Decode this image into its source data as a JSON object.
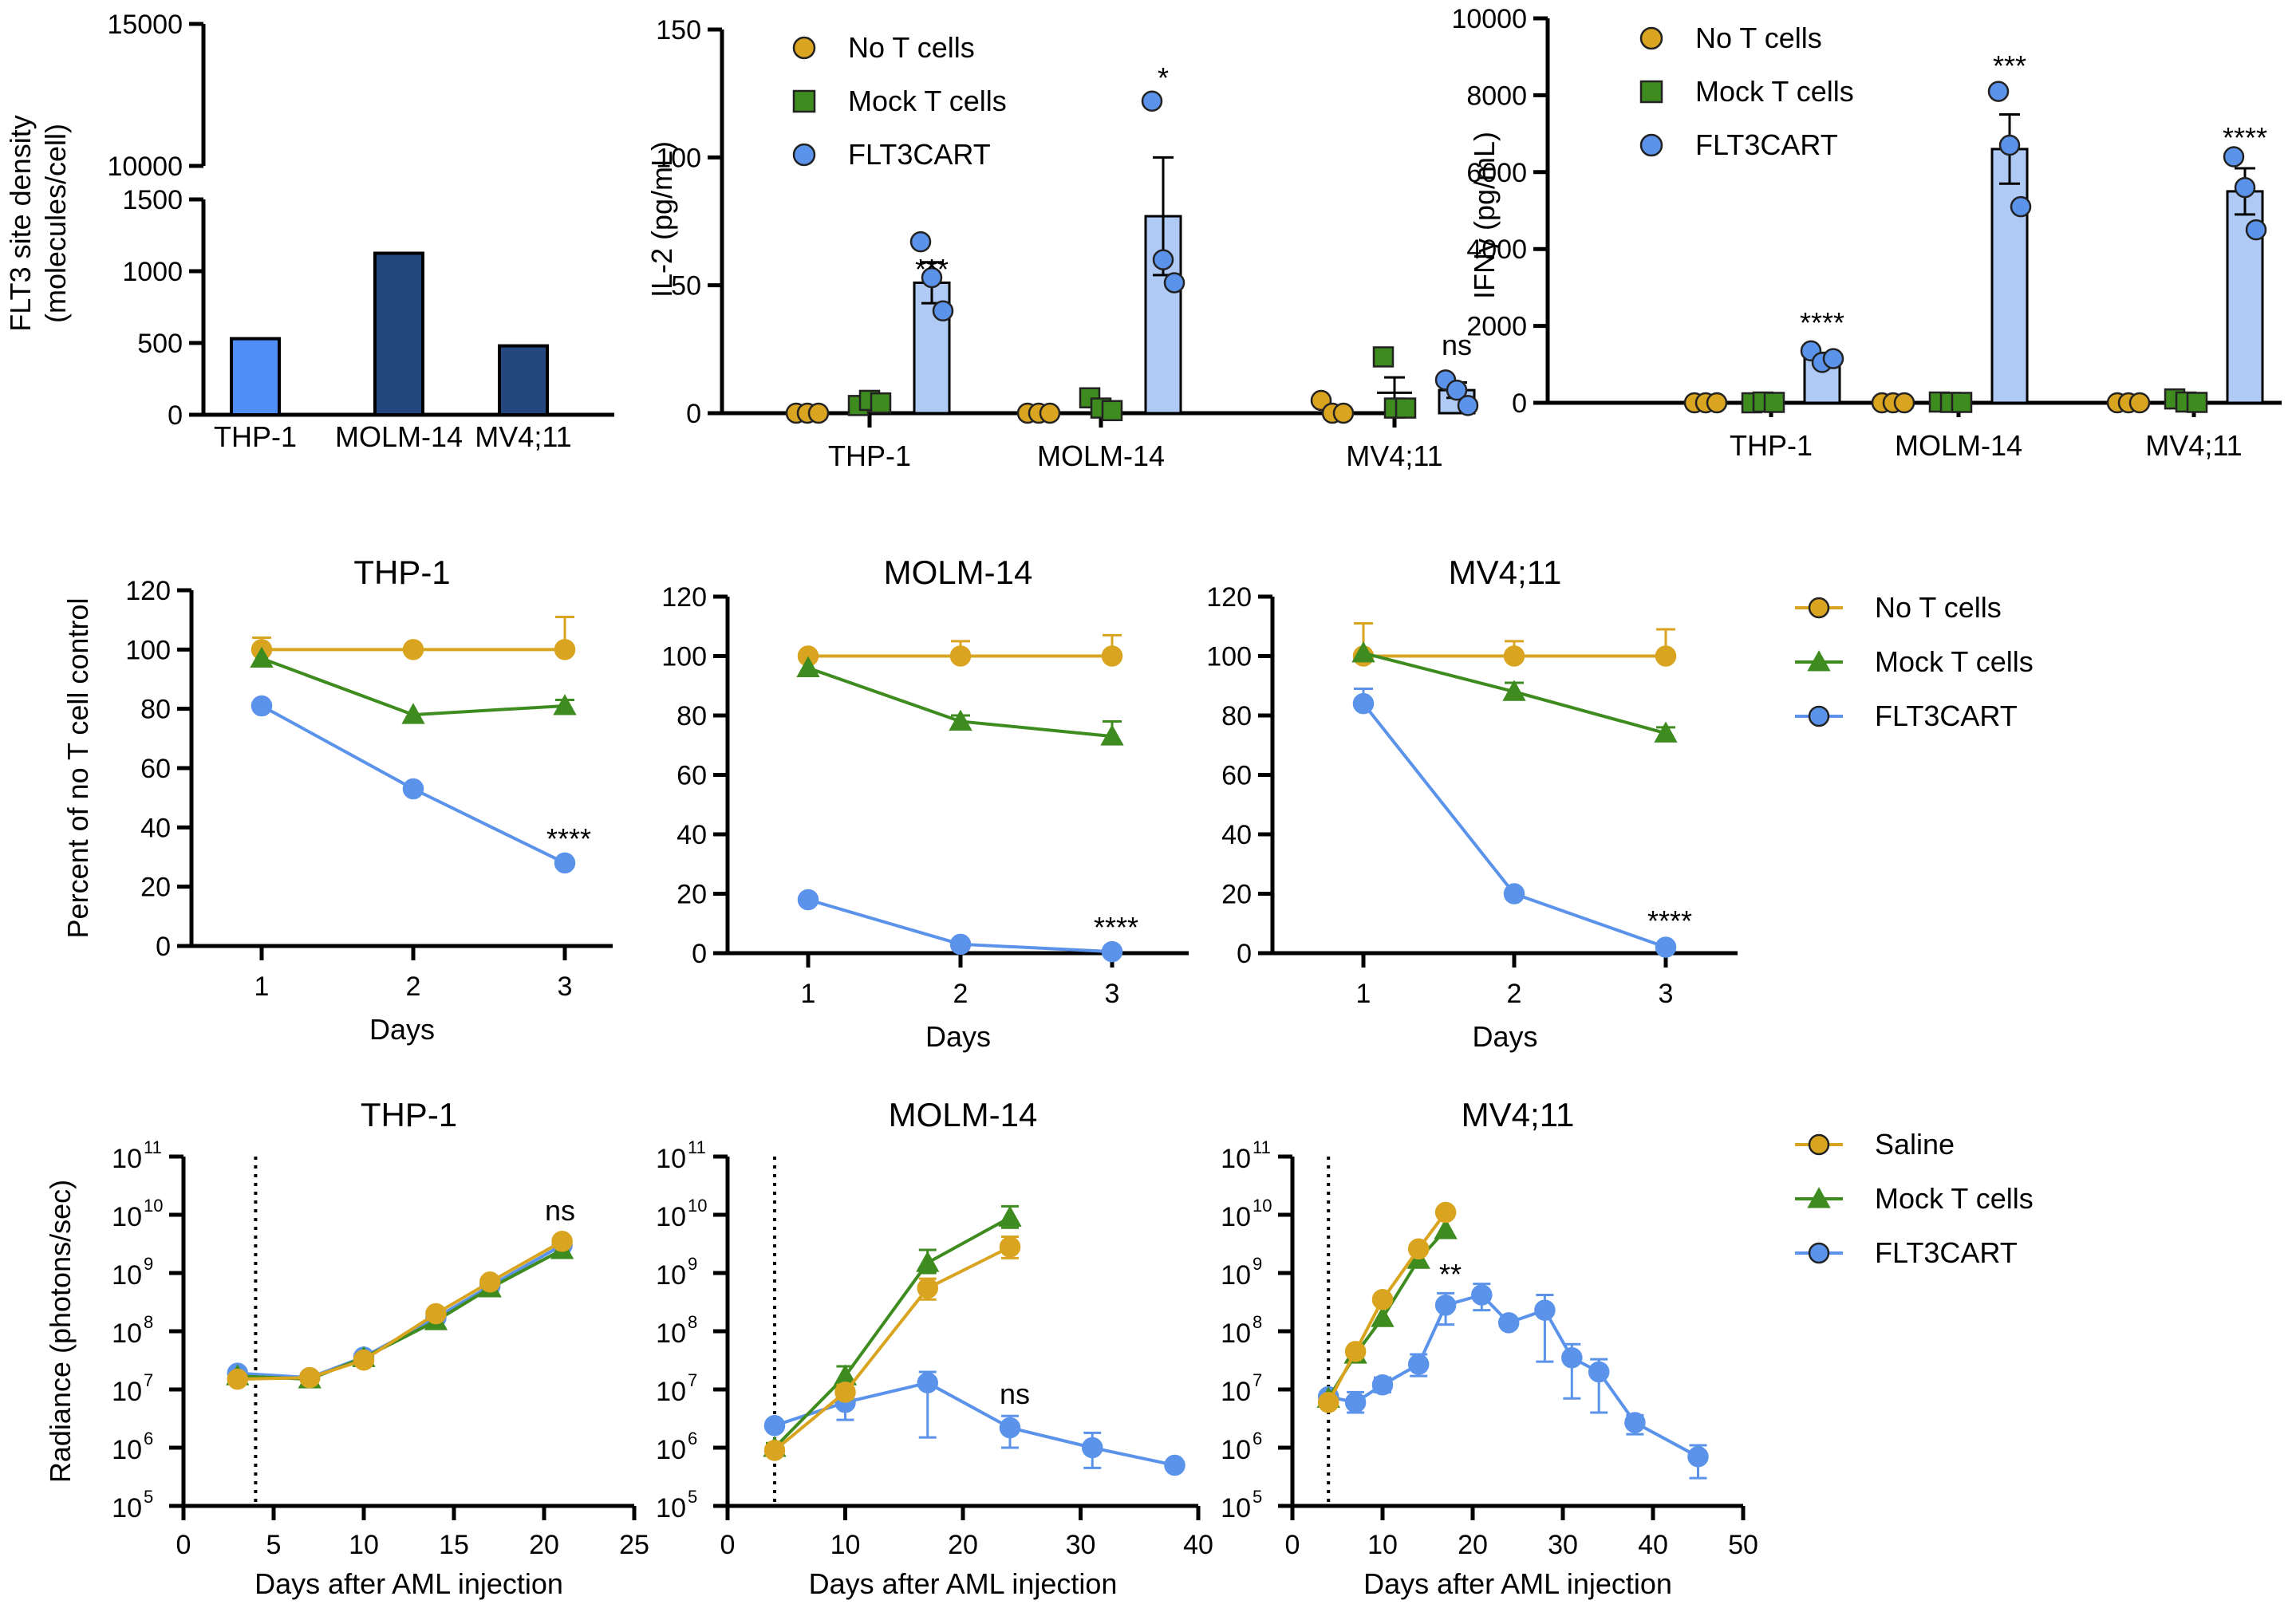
{
  "colors": {
    "no_t": "#D9A520",
    "mock": "#3E8B1F",
    "flt3": "#5B93EA",
    "bar_light": "#AFCBF5",
    "bar_thp1": "#4F8EF7",
    "bar_dark": "#24477F"
  },
  "chart_data": [
    {
      "id": "site-density",
      "type": "bar",
      "title": "",
      "xlabel": "",
      "ylabel": "FLT3 site density",
      "ylabel2": "(molecules/cell)",
      "categories": [
        "THP-1",
        "MOLM-14",
        "MV4;11"
      ],
      "values": [
        530,
        1125,
        480
      ],
      "ylim": [
        0,
        15000
      ],
      "axis_break": [
        1500,
        10000
      ],
      "yticks": [
        "0",
        "500",
        "1000",
        "1500",
        "10000",
        "15000"
      ],
      "grid": false,
      "legend": "none"
    },
    {
      "id": "il2",
      "type": "bar",
      "title": "",
      "xlabel": "",
      "ylabel": "IL-2 (pg/mL)",
      "ylim": [
        0,
        150
      ],
      "yticks": [
        "0",
        "50",
        "100",
        "150"
      ],
      "categories": [
        "THP-1",
        "MOLM-14",
        "MV4;11"
      ],
      "legend": "top-right",
      "series": [
        {
          "name": "No T cells",
          "means": [
            0,
            0,
            0
          ],
          "sem": [
            0,
            0,
            0
          ],
          "points": [
            [
              0,
              0,
              0
            ],
            [
              0,
              0,
              0
            ],
            [
              5,
              0,
              0
            ]
          ]
        },
        {
          "name": "Mock T cells",
          "means": [
            4,
            3,
            8
          ],
          "sem": [
            1,
            2,
            6
          ],
          "points": [
            [
              3,
              5,
              4
            ],
            [
              6,
              2,
              1
            ],
            [
              22,
              2,
              2
            ]
          ]
        },
        {
          "name": "FLT3CART",
          "means": [
            51,
            77,
            9
          ],
          "sem": [
            8,
            23,
            3
          ],
          "points": [
            [
              67,
              53,
              40
            ],
            [
              122,
              60,
              51
            ],
            [
              13,
              9,
              3
            ]
          ]
        }
      ],
      "annotations": [
        "***",
        "*",
        "ns"
      ]
    },
    {
      "id": "ifng",
      "type": "bar",
      "title": "",
      "xlabel": "",
      "ylabel": "IFNγ (pg/mL)",
      "ylim": [
        0,
        10000
      ],
      "yticks": [
        "0",
        "2000",
        "4000",
        "6000",
        "8000",
        "10000"
      ],
      "categories": [
        "THP-1",
        "MOLM-14",
        "MV4;11"
      ],
      "legend": "top-right",
      "series": [
        {
          "name": "No T cells",
          "means": [
            0,
            0,
            0
          ],
          "sem": [
            0,
            0,
            0
          ],
          "points": [
            [
              0,
              0,
              0
            ],
            [
              0,
              0,
              0
            ],
            [
              0,
              0,
              0
            ]
          ]
        },
        {
          "name": "Mock T cells",
          "means": [
            20,
            20,
            80
          ],
          "sem": [
            10,
            10,
            50
          ],
          "points": [
            [
              0,
              20,
              10
            ],
            [
              20,
              10,
              10
            ],
            [
              100,
              20,
              10
            ]
          ]
        },
        {
          "name": "FLT3CART",
          "means": [
            1150,
            6600,
            5500
          ],
          "sem": [
            150,
            900,
            600
          ],
          "points": [
            [
              1350,
              1050,
              1150
            ],
            [
              8100,
              6700,
              5100
            ],
            [
              6400,
              5600,
              4500
            ]
          ]
        }
      ],
      "annotations": [
        "****",
        "***",
        "****"
      ]
    },
    {
      "id": "kill-thp1",
      "type": "line",
      "title": "THP-1",
      "xlabel": "Days",
      "ylabel": "Percent of no T cell control",
      "x": [
        1,
        2,
        3
      ],
      "ylim": [
        0,
        120
      ],
      "yticks": [
        "0",
        "20",
        "40",
        "60",
        "80",
        "100",
        "120"
      ],
      "xticks": [
        "1",
        "2",
        "3"
      ],
      "series": [
        {
          "name": "No T cells",
          "values": [
            100,
            100,
            100
          ],
          "err": [
            4,
            1,
            11
          ]
        },
        {
          "name": "Mock T cells",
          "values": [
            97,
            78,
            81
          ],
          "err": [
            1,
            1,
            2
          ]
        },
        {
          "name": "FLT3CART",
          "values": [
            81,
            53,
            28
          ],
          "err": [
            1,
            1,
            1
          ]
        }
      ],
      "annotation": "****"
    },
    {
      "id": "kill-molm14",
      "type": "line",
      "title": "MOLM-14",
      "xlabel": "Days",
      "ylabel": "",
      "x": [
        1,
        2,
        3
      ],
      "ylim": [
        0,
        120
      ],
      "yticks": [
        "0",
        "20",
        "40",
        "60",
        "80",
        "100",
        "120"
      ],
      "xticks": [
        "1",
        "2",
        "3"
      ],
      "series": [
        {
          "name": "No T cells",
          "values": [
            100,
            100,
            100
          ],
          "err": [
            1,
            5,
            7
          ]
        },
        {
          "name": "Mock T cells",
          "values": [
            96,
            78,
            73
          ],
          "err": [
            1,
            2,
            5
          ]
        },
        {
          "name": "FLT3CART",
          "values": [
            18,
            3,
            0.5
          ],
          "err": [
            1,
            1,
            0.5
          ]
        }
      ],
      "annotation": "****"
    },
    {
      "id": "kill-mv411",
      "type": "line",
      "title": "MV4;11",
      "xlabel": "Days",
      "ylabel": "",
      "x": [
        1,
        2,
        3
      ],
      "ylim": [
        0,
        120
      ],
      "yticks": [
        "0",
        "20",
        "40",
        "60",
        "80",
        "100",
        "120"
      ],
      "xticks": [
        "1",
        "2",
        "3"
      ],
      "legend": "right",
      "series": [
        {
          "name": "No T cells",
          "values": [
            100,
            100,
            100
          ],
          "err": [
            11,
            5,
            9
          ]
        },
        {
          "name": "Mock T cells",
          "values": [
            101,
            88,
            74
          ],
          "err": [
            1,
            3,
            2
          ]
        },
        {
          "name": "FLT3CART",
          "values": [
            84,
            20,
            2
          ],
          "err": [
            5,
            1,
            1
          ]
        }
      ],
      "annotation": "****"
    },
    {
      "id": "rad-thp1",
      "type": "line",
      "title": "THP-1",
      "xlabel": "Days after AML injection",
      "ylabel": "Radiance (photons/sec)",
      "yscale": "log",
      "ylim": [
        100000,
        100000000000
      ],
      "xlim": [
        0,
        25
      ],
      "xticks": [
        "0",
        "5",
        "10",
        "15",
        "20",
        "25"
      ],
      "yticks_base": "10",
      "yticks_exp": [
        "5",
        "6",
        "7",
        "8",
        "9",
        "10",
        "11"
      ],
      "dotted_line_x": 4,
      "series": [
        {
          "name": "Saline",
          "x": [
            3,
            7,
            10,
            14,
            17,
            21
          ],
          "values": [
            15000000,
            16000000,
            32000000,
            200000000,
            700000000,
            3500000000
          ],
          "err_hi": [],
          "err_lo": []
        },
        {
          "name": "Mock T cells",
          "x": [
            3,
            7,
            10,
            14,
            17,
            21
          ],
          "values": [
            17000000,
            15000000,
            35000000,
            150000000,
            550000000,
            2500000000
          ],
          "err_hi": [],
          "err_lo": []
        },
        {
          "name": "FLT3CART",
          "x": [
            3,
            7,
            10,
            14,
            17,
            21
          ],
          "values": [
            19000000,
            16000000,
            36000000,
            170000000,
            600000000,
            3000000000
          ],
          "err_hi": [],
          "err_lo": []
        }
      ],
      "annotation": "ns"
    },
    {
      "id": "rad-molm14",
      "type": "line",
      "title": "MOLM-14",
      "xlabel": "Days after AML injection",
      "ylabel": "",
      "yscale": "log",
      "ylim": [
        100000,
        100000000000
      ],
      "xlim": [
        0,
        40
      ],
      "xticks": [
        "0",
        "10",
        "20",
        "30",
        "40"
      ],
      "yticks_base": "10",
      "yticks_exp": [
        "5",
        "6",
        "7",
        "8",
        "9",
        "10",
        "11"
      ],
      "dotted_line_x": 4,
      "series": [
        {
          "name": "Saline",
          "x": [
            4,
            10,
            17,
            24
          ],
          "values": [
            900000,
            9000000,
            550000000,
            2800000000
          ],
          "err_hi": [
            1100000,
            12000000,
            800000000,
            4200000000
          ],
          "err_lo": [
            800000,
            7000000,
            350000000,
            1800000000
          ]
        },
        {
          "name": "Mock T cells",
          "x": [
            4,
            10,
            17,
            24
          ],
          "values": [
            1000000,
            17000000,
            1500000000,
            9000000000
          ],
          "err_hi": [
            1200000,
            25000000,
            2500000000,
            14000000000
          ],
          "err_lo": [
            900000,
            12000000,
            1000000000,
            6000000000
          ]
        },
        {
          "name": "FLT3CART",
          "x": [
            4,
            10,
            17,
            24,
            31,
            38
          ],
          "values": [
            2400000,
            6000000,
            13000000,
            2200000,
            1000000,
            500000
          ],
          "err_hi": [
            2600000,
            9000000,
            20000000,
            3500000,
            1800000,
            520000
          ],
          "err_lo": [
            2200000,
            3000000,
            1500000,
            1000000,
            450000,
            480000
          ]
        }
      ],
      "annotation": "ns"
    },
    {
      "id": "rad-mv411",
      "type": "line",
      "title": "MV4;11",
      "xlabel": "Days after AML injection",
      "ylabel": "",
      "yscale": "log",
      "ylim": [
        100000,
        100000000000
      ],
      "xlim": [
        0,
        50
      ],
      "xticks": [
        "0",
        "10",
        "20",
        "30",
        "40",
        "50"
      ],
      "yticks_base": "10",
      "yticks_exp": [
        "5",
        "6",
        "7",
        "8",
        "9",
        "10",
        "11"
      ],
      "dotted_line_x": 4,
      "legend": "right",
      "series": [
        {
          "name": "Saline",
          "x": [
            4,
            7,
            10,
            14,
            17
          ],
          "values": [
            6000000,
            45000000,
            350000000,
            2600000000,
            11000000000
          ],
          "err_hi": [],
          "err_lo": []
        },
        {
          "name": "Mock T cells",
          "x": [
            4,
            7,
            10,
            14,
            17
          ],
          "values": [
            7000000,
            40000000,
            170000000,
            1700000000,
            5500000000
          ],
          "err_hi": [],
          "err_lo": []
        },
        {
          "name": "FLT3CART",
          "x": [
            4,
            7,
            10,
            14,
            17,
            21,
            24,
            28,
            31,
            34,
            38,
            45
          ],
          "values": [
            7500000,
            6000000,
            12000000,
            27000000,
            280000000,
            420000000,
            140000000,
            230000000,
            35000000,
            20000000,
            2700000,
            700000
          ],
          "err_hi": [
            9000000,
            9000000,
            16000000,
            40000000,
            450000000,
            650000000,
            170000000,
            420000000,
            60000000,
            33000000,
            3600000,
            1100000
          ],
          "err_lo": [
            6500000,
            4000000,
            9000000,
            17000000,
            130000000,
            230000000,
            120000000,
            30000000,
            7000000,
            4000000,
            1700000,
            300000
          ]
        }
      ],
      "annotation": "**"
    }
  ],
  "legend_top": [
    "No T cells",
    "Mock T cells",
    "FLT3CART"
  ],
  "legend_mid": [
    "No T cells",
    "Mock T cells",
    "FLT3CART"
  ],
  "legend_bottom": [
    "Saline",
    "Mock T cells",
    "FLT3CART"
  ]
}
